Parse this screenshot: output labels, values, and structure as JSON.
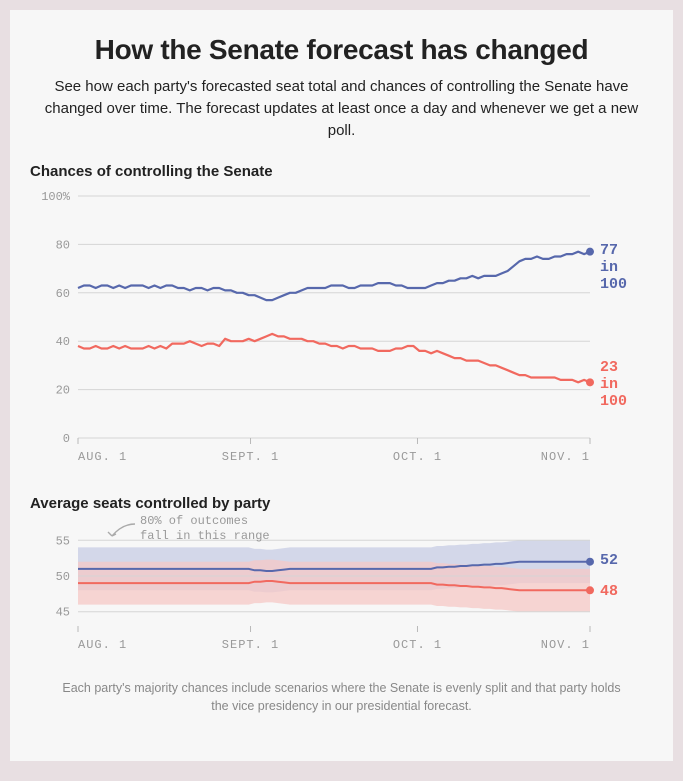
{
  "title": "How the Senate forecast has changed",
  "subtitle": "See how each party's forecasted seat total and chances of controlling the Senate have changed over time. The forecast updates at least once a day and whenever we get a new poll.",
  "footnote": "Each party's majority chances include scenarios where the Senate is evenly split and that party holds the vice presidency in our presidential forecast.",
  "colors": {
    "dem": "#5768ac",
    "rep": "#f1695f",
    "dem_band": "#c7cce4",
    "rep_band": "#f5c8c5",
    "grid": "#d5d5d5",
    "axis": "#b8b8b8",
    "tick_text": "#999999",
    "bg": "#f7f7f7"
  },
  "time_axis": {
    "t_min": 0,
    "t_max": 92,
    "ticks": [
      {
        "t": 0,
        "label": "AUG. 1"
      },
      {
        "t": 31,
        "label": "SEPT. 1"
      },
      {
        "t": 61,
        "label": "OCT. 1"
      },
      {
        "t": 92,
        "label": "NOV. 1"
      }
    ]
  },
  "chances_chart": {
    "title": "Chances of controlling the Senate",
    "ylim": [
      0,
      100
    ],
    "yticks": [
      0,
      20,
      40,
      60,
      80,
      100
    ],
    "ytick_suffix_first": "%",
    "line_width": 2.2,
    "marker_radius": 4,
    "dem_end_label_lines": [
      "77",
      "in",
      "100"
    ],
    "rep_end_label_lines": [
      "23",
      "in",
      "100"
    ],
    "dem": [
      62,
      63,
      63,
      62,
      63,
      63,
      62,
      63,
      62,
      63,
      63,
      63,
      62,
      63,
      62,
      63,
      63,
      62,
      62,
      61,
      62,
      62,
      61,
      62,
      62,
      61,
      61,
      60,
      60,
      59,
      59,
      58,
      57,
      57,
      58,
      59,
      60,
      60,
      61,
      62,
      62,
      62,
      62,
      63,
      63,
      63,
      62,
      62,
      63,
      63,
      63,
      64,
      64,
      64,
      63,
      63,
      62,
      62,
      62,
      62,
      63,
      64,
      64,
      65,
      65,
      66,
      66,
      67,
      66,
      67,
      67,
      67,
      68,
      69,
      71,
      73,
      74,
      74,
      75,
      74,
      74,
      75,
      75,
      76,
      76,
      77,
      76,
      77
    ],
    "rep": [
      38,
      37,
      37,
      38,
      37,
      37,
      38,
      37,
      38,
      37,
      37,
      37,
      38,
      37,
      38,
      37,
      39,
      39,
      39,
      40,
      39,
      38,
      39,
      39,
      38,
      41,
      40,
      40,
      40,
      41,
      40,
      41,
      42,
      43,
      42,
      42,
      41,
      41,
      41,
      40,
      40,
      39,
      39,
      38,
      38,
      37,
      38,
      38,
      37,
      37,
      37,
      36,
      36,
      36,
      37,
      37,
      38,
      38,
      36,
      36,
      35,
      36,
      35,
      34,
      33,
      33,
      32,
      32,
      32,
      31,
      30,
      30,
      29,
      28,
      27,
      26,
      26,
      25,
      25,
      25,
      25,
      25,
      24,
      24,
      24,
      23,
      24,
      23
    ]
  },
  "seats_chart": {
    "title": "Average seats controlled by party",
    "ylim": [
      43,
      57
    ],
    "yticks": [
      45,
      50,
      55
    ],
    "line_width": 2,
    "marker_radius": 4,
    "annotation": "80% of outcomes\nfall in this range",
    "dem_end_label": "52",
    "rep_end_label": "48",
    "dem": [
      51,
      51,
      51,
      51,
      51,
      51,
      51,
      51,
      51,
      51,
      51,
      51,
      51,
      51,
      51,
      51,
      51,
      51,
      51,
      51,
      51,
      51,
      51,
      51,
      51,
      51,
      51,
      51,
      51,
      51,
      50.8,
      50.8,
      50.7,
      50.7,
      50.8,
      50.9,
      51,
      51,
      51,
      51,
      51,
      51,
      51,
      51,
      51,
      51,
      51,
      51,
      51,
      51,
      51,
      51,
      51,
      51,
      51,
      51,
      51,
      51,
      51,
      51,
      51,
      51.2,
      51.2,
      51.3,
      51.3,
      51.4,
      51.4,
      51.5,
      51.5,
      51.6,
      51.6,
      51.7,
      51.7,
      51.8,
      51.9,
      52,
      52,
      52,
      52,
      52,
      52,
      52,
      52,
      52,
      52,
      52,
      52,
      52
    ],
    "rep": [
      49,
      49,
      49,
      49,
      49,
      49,
      49,
      49,
      49,
      49,
      49,
      49,
      49,
      49,
      49,
      49,
      49,
      49,
      49,
      49,
      49,
      49,
      49,
      49,
      49,
      49,
      49,
      49,
      49,
      49,
      49.2,
      49.2,
      49.3,
      49.3,
      49.2,
      49.1,
      49,
      49,
      49,
      49,
      49,
      49,
      49,
      49,
      49,
      49,
      49,
      49,
      49,
      49,
      49,
      49,
      49,
      49,
      49,
      49,
      49,
      49,
      49,
      49,
      49,
      48.8,
      48.8,
      48.7,
      48.7,
      48.6,
      48.6,
      48.5,
      48.5,
      48.4,
      48.4,
      48.3,
      48.3,
      48.2,
      48.1,
      48,
      48,
      48,
      48,
      48,
      48,
      48,
      48,
      48,
      48,
      48,
      48,
      48
    ],
    "dem_high": [
      54,
      54,
      54,
      54,
      54,
      54,
      54,
      54,
      54,
      54,
      54,
      54,
      54,
      54,
      54,
      54,
      54,
      54,
      54,
      54,
      54,
      54,
      54,
      54,
      54,
      54,
      54,
      54,
      54,
      54,
      53.8,
      53.8,
      53.7,
      53.7,
      53.8,
      53.9,
      54,
      54,
      54,
      54,
      54,
      54,
      54,
      54,
      54,
      54,
      54,
      54,
      54,
      54,
      54,
      54,
      54,
      54,
      54,
      54,
      54,
      54,
      54,
      54,
      54,
      54.2,
      54.2,
      54.3,
      54.3,
      54.4,
      54.4,
      54.5,
      54.5,
      54.6,
      54.6,
      54.7,
      54.7,
      54.8,
      54.9,
      55,
      55,
      55,
      55,
      55,
      55,
      55,
      55,
      55,
      55,
      55,
      55,
      55
    ],
    "dem_low": [
      48,
      48,
      48,
      48,
      48,
      48,
      48,
      48,
      48,
      48,
      48,
      48,
      48,
      48,
      48,
      48,
      48,
      48,
      48,
      48,
      48,
      48,
      48,
      48,
      48,
      48,
      48,
      48,
      48,
      48,
      47.8,
      47.8,
      47.7,
      47.7,
      47.8,
      47.9,
      48,
      48,
      48,
      48,
      48,
      48,
      48,
      48,
      48,
      48,
      48,
      48,
      48,
      48,
      48,
      48,
      48,
      48,
      48,
      48,
      48,
      48,
      48,
      48,
      48,
      48.2,
      48.2,
      48.3,
      48.3,
      48.4,
      48.4,
      48.5,
      48.5,
      48.6,
      48.6,
      48.7,
      48.7,
      48.8,
      48.9,
      49,
      49,
      49,
      49,
      49,
      49,
      49,
      49,
      49,
      49,
      49,
      49,
      49
    ],
    "rep_high": [
      52,
      52,
      52,
      52,
      52,
      52,
      52,
      52,
      52,
      52,
      52,
      52,
      52,
      52,
      52,
      52,
      52,
      52,
      52,
      52,
      52,
      52,
      52,
      52,
      52,
      52,
      52,
      52,
      52,
      52,
      52.2,
      52.2,
      52.3,
      52.3,
      52.2,
      52.1,
      52,
      52,
      52,
      52,
      52,
      52,
      52,
      52,
      52,
      52,
      52,
      52,
      52,
      52,
      52,
      52,
      52,
      52,
      52,
      52,
      52,
      52,
      52,
      52,
      52,
      51.8,
      51.8,
      51.7,
      51.7,
      51.6,
      51.6,
      51.5,
      51.5,
      51.4,
      51.4,
      51.3,
      51.3,
      51.2,
      51.1,
      51,
      51,
      51,
      51,
      51,
      51,
      51,
      51,
      51,
      51,
      51,
      51,
      51
    ],
    "rep_low": [
      46,
      46,
      46,
      46,
      46,
      46,
      46,
      46,
      46,
      46,
      46,
      46,
      46,
      46,
      46,
      46,
      46,
      46,
      46,
      46,
      46,
      46,
      46,
      46,
      46,
      46,
      46,
      46,
      46,
      46,
      46.2,
      46.2,
      46.3,
      46.3,
      46.2,
      46.1,
      46,
      46,
      46,
      46,
      46,
      46,
      46,
      46,
      46,
      46,
      46,
      46,
      46,
      46,
      46,
      46,
      46,
      46,
      46,
      46,
      46,
      46,
      46,
      46,
      46,
      45.8,
      45.8,
      45.7,
      45.7,
      45.6,
      45.6,
      45.5,
      45.5,
      45.4,
      45.4,
      45.3,
      45.3,
      45.2,
      45.1,
      45,
      45,
      45,
      45,
      45,
      45,
      45,
      45,
      45,
      45,
      45,
      45,
      45
    ]
  }
}
